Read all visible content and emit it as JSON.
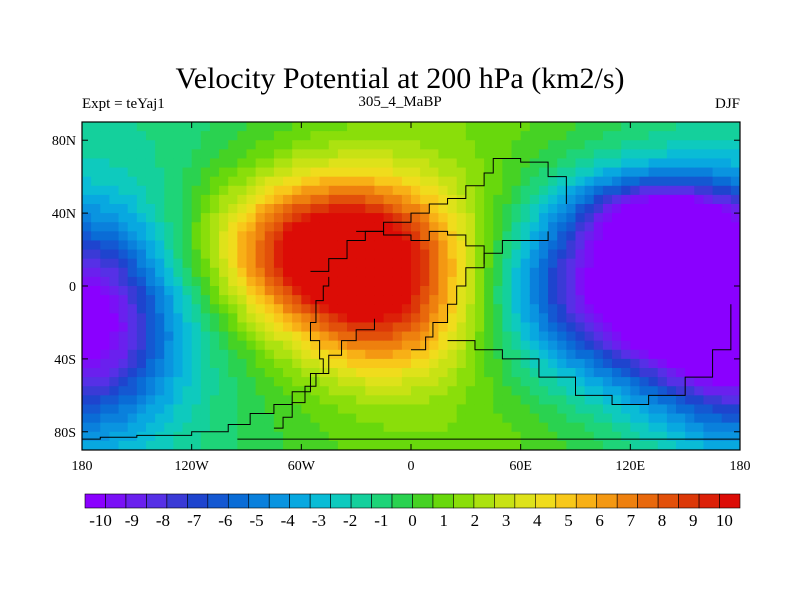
{
  "chart_data": {
    "type": "heatmap",
    "title": "Velocity Potential at 200 hPa (km2/s)",
    "left_string": "Expt = teYaj1",
    "center_string": "305_4_MaBP",
    "right_string": "DJF",
    "x_ticks": [
      {
        "v": -180,
        "label": "180"
      },
      {
        "v": -120,
        "label": "120W"
      },
      {
        "v": -60,
        "label": "60W"
      },
      {
        "v": 0,
        "label": "0"
      },
      {
        "v": 60,
        "label": "60E"
      },
      {
        "v": 120,
        "label": "120E"
      },
      {
        "v": 180,
        "label": "180"
      }
    ],
    "y_ticks": [
      {
        "v": 80,
        "label": "80N"
      },
      {
        "v": 40,
        "label": "40N"
      },
      {
        "v": 0,
        "label": "0"
      },
      {
        "v": -40,
        "label": "40S"
      },
      {
        "v": -80,
        "label": "80S"
      }
    ],
    "xlim": [
      -180,
      180
    ],
    "ylim": [
      -90,
      90
    ],
    "colorbar_ticks": [
      "-10",
      "-9",
      "-8",
      "-7",
      "-6",
      "-5",
      "-4",
      "-3",
      "-2",
      "-1",
      "0",
      "1",
      "2",
      "3",
      "4",
      "5",
      "6",
      "7",
      "8",
      "9",
      "10"
    ],
    "colorbar_range": [
      -10.5,
      10.5
    ],
    "colorbar_step": 0.5,
    "field_centers": [
      {
        "lon": -40,
        "lat": 20,
        "value": 12,
        "sx": 45,
        "sy": 28
      },
      {
        "lon": -15,
        "lat": -20,
        "value": 5,
        "sx": 35,
        "sy": 25
      },
      {
        "lon": 120,
        "lat": 0,
        "value": -11,
        "sx": 50,
        "sy": 35
      },
      {
        "lon": 135,
        "lat": 40,
        "value": -5,
        "sx": 30,
        "sy": 15
      },
      {
        "lon": -180,
        "lat": -20,
        "value": -10,
        "sx": 35,
        "sy": 40
      },
      {
        "lon": 180,
        "lat": -20,
        "value": -10,
        "sx": 35,
        "sy": 40
      }
    ],
    "palette": [
      "#8a00ff",
      "#7a10f6",
      "#6a20ee",
      "#5630e6",
      "#3a3ad6",
      "#1e44ce",
      "#1458d2",
      "#0a6cd6",
      "#0a80dc",
      "#0a94e0",
      "#08a8e0",
      "#0abcd6",
      "#0ecabe",
      "#14d09c",
      "#1ed478",
      "#2ad250",
      "#46d224",
      "#68d80c",
      "#8ade0a",
      "#ace210",
      "#c8e214",
      "#dee21a",
      "#f0dc1c",
      "#f8c81a",
      "#f8b016",
      "#f49812",
      "#ee800e",
      "#e8680c",
      "#e2500a",
      "#dc3808",
      "#dc2008",
      "#dc0c06"
    ],
    "continent_outlines": [
      [
        [
          -180,
          -84
        ],
        [
          -170,
          -83
        ],
        [
          -150,
          -82
        ],
        [
          -120,
          -80
        ],
        [
          -100,
          -76
        ],
        [
          -88,
          -70
        ],
        [
          -75,
          -65
        ],
        [
          -65,
          -58
        ],
        [
          -55,
          -48
        ],
        [
          -45,
          -38
        ],
        [
          -38,
          -30
        ],
        [
          -30,
          -24
        ],
        [
          -20,
          -18
        ]
      ],
      [
        [
          -75,
          -78
        ],
        [
          -70,
          -72
        ],
        [
          -65,
          -64
        ],
        [
          -58,
          -55
        ],
        [
          -52,
          -48
        ],
        [
          -48,
          -40
        ],
        [
          -50,
          -30
        ],
        [
          -55,
          -20
        ],
        [
          -52,
          -8
        ],
        [
          -48,
          0
        ],
        [
          -45,
          5
        ]
      ],
      [
        [
          -55,
          8
        ],
        [
          -45,
          15
        ],
        [
          -35,
          25
        ],
        [
          -25,
          30
        ],
        [
          -15,
          28
        ],
        [
          0,
          25
        ],
        [
          10,
          30
        ],
        [
          20,
          28
        ],
        [
          30,
          22
        ],
        [
          40,
          12
        ]
      ],
      [
        [
          -30,
          30
        ],
        [
          -15,
          35
        ],
        [
          0,
          40
        ],
        [
          10,
          45
        ],
        [
          20,
          48
        ],
        [
          30,
          55
        ],
        [
          40,
          62
        ],
        [
          45,
          70
        ],
        [
          60,
          68
        ],
        [
          75,
          60
        ],
        [
          85,
          45
        ]
      ],
      [
        [
          0,
          -35
        ],
        [
          8,
          -28
        ],
        [
          12,
          -20
        ],
        [
          20,
          -10
        ],
        [
          25,
          0
        ],
        [
          30,
          10
        ],
        [
          40,
          18
        ],
        [
          50,
          25
        ],
        [
          60,
          25
        ],
        [
          75,
          30
        ]
      ],
      [
        [
          20,
          -30
        ],
        [
          35,
          -35
        ],
        [
          50,
          -40
        ],
        [
          70,
          -50
        ],
        [
          90,
          -60
        ],
        [
          110,
          -65
        ],
        [
          130,
          -60
        ],
        [
          150,
          -50
        ],
        [
          165,
          -35
        ],
        [
          175,
          -10
        ]
      ],
      [
        [
          -95,
          -84
        ],
        [
          -60,
          -84
        ],
        [
          -20,
          -84
        ],
        [
          30,
          -84
        ],
        [
          80,
          -84
        ],
        [
          130,
          -84
        ],
        [
          180,
          -84
        ]
      ]
    ]
  }
}
